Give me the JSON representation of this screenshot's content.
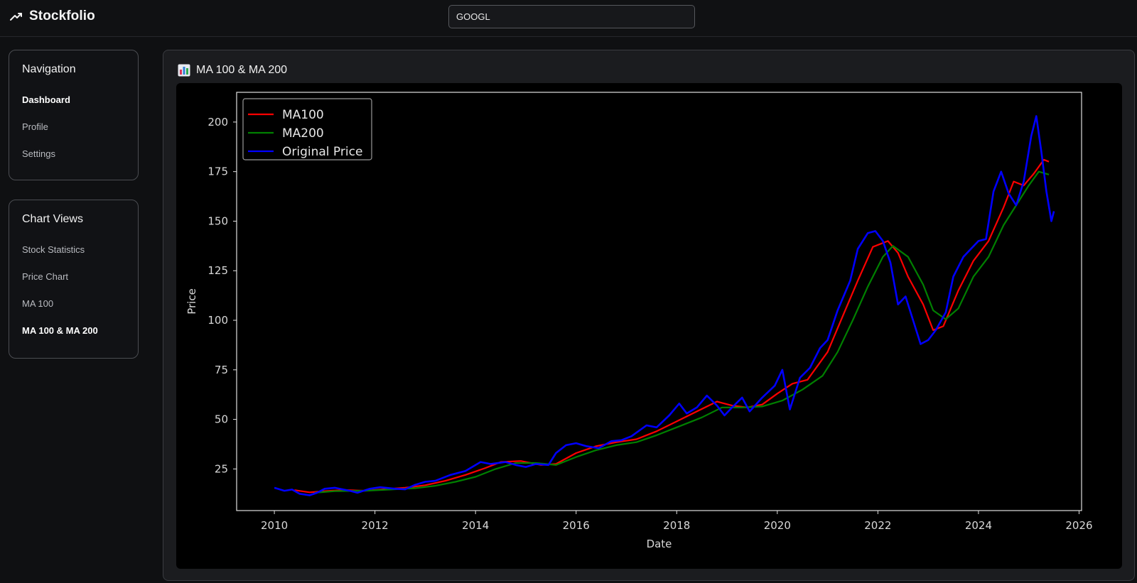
{
  "app": {
    "name": "Stockfolio",
    "logo_icon": "trending-up-icon"
  },
  "search": {
    "value": "GOOGL"
  },
  "navigation": {
    "title": "Navigation",
    "items": [
      {
        "label": "Dashboard",
        "active": true
      },
      {
        "label": "Profile",
        "active": false
      },
      {
        "label": "Settings",
        "active": false
      }
    ]
  },
  "chart_views": {
    "title": "Chart Views",
    "items": [
      {
        "label": "Stock Statistics",
        "active": false
      },
      {
        "label": "Price Chart",
        "active": false
      },
      {
        "label": "MA 100",
        "active": false
      },
      {
        "label": "MA 100 & MA 200",
        "active": true
      }
    ]
  },
  "main": {
    "title": "MA 100 & MA 200",
    "title_icon": "bar-chart-icon"
  },
  "colors": {
    "ma100": "#ff0000",
    "ma200": "#008000",
    "price": "#0000ff",
    "background": "#000000"
  },
  "chart_data": {
    "type": "line",
    "xlabel": "Date",
    "ylabel": "Price",
    "xlim": [
      2009.25,
      2026.05
    ],
    "ylim": [
      4,
      215
    ],
    "xticks": [
      2010,
      2012,
      2014,
      2016,
      2018,
      2020,
      2022,
      2024,
      2026
    ],
    "yticks": [
      25,
      50,
      75,
      100,
      125,
      150,
      175,
      200
    ],
    "legend_position": "upper-left",
    "series": [
      {
        "name": "MA100",
        "color": "#ff0000",
        "points": [
          [
            2010.4,
            14.3
          ],
          [
            2010.7,
            13.2
          ],
          [
            2011.0,
            13.8
          ],
          [
            2011.4,
            14.4
          ],
          [
            2011.8,
            14.0
          ],
          [
            2012.2,
            14.8
          ],
          [
            2012.6,
            15.5
          ],
          [
            2013.0,
            16.8
          ],
          [
            2013.4,
            19.0
          ],
          [
            2013.8,
            22.0
          ],
          [
            2014.2,
            25.5
          ],
          [
            2014.5,
            28.5
          ],
          [
            2014.9,
            29.0
          ],
          [
            2015.3,
            27.0
          ],
          [
            2015.6,
            27.5
          ],
          [
            2016.0,
            33.0
          ],
          [
            2016.4,
            36.5
          ],
          [
            2016.8,
            38.5
          ],
          [
            2017.2,
            40.0
          ],
          [
            2017.6,
            44.0
          ],
          [
            2018.0,
            49.0
          ],
          [
            2018.4,
            54.0
          ],
          [
            2018.8,
            59.0
          ],
          [
            2019.1,
            57.0
          ],
          [
            2019.4,
            56.0
          ],
          [
            2019.7,
            57.5
          ],
          [
            2020.0,
            63.0
          ],
          [
            2020.3,
            68.0
          ],
          [
            2020.6,
            70.0
          ],
          [
            2021.0,
            84.0
          ],
          [
            2021.3,
            102.0
          ],
          [
            2021.6,
            120.0
          ],
          [
            2021.9,
            137.0
          ],
          [
            2022.2,
            140.0
          ],
          [
            2022.4,
            134.0
          ],
          [
            2022.6,
            122.0
          ],
          [
            2022.9,
            108.0
          ],
          [
            2023.1,
            95.0
          ],
          [
            2023.3,
            97.0
          ],
          [
            2023.6,
            115.0
          ],
          [
            2023.9,
            130.0
          ],
          [
            2024.2,
            140.0
          ],
          [
            2024.5,
            157.0
          ],
          [
            2024.7,
            170.0
          ],
          [
            2024.9,
            168.0
          ],
          [
            2025.1,
            174.0
          ],
          [
            2025.3,
            181.0
          ],
          [
            2025.4,
            180.0
          ]
        ]
      },
      {
        "name": "MA200",
        "color": "#008000",
        "points": [
          [
            2010.8,
            13.0
          ],
          [
            2011.2,
            13.8
          ],
          [
            2011.8,
            14.0
          ],
          [
            2012.3,
            14.6
          ],
          [
            2012.8,
            15.3
          ],
          [
            2013.2,
            16.5
          ],
          [
            2013.6,
            18.5
          ],
          [
            2014.0,
            21.0
          ],
          [
            2014.4,
            25.0
          ],
          [
            2014.8,
            28.0
          ],
          [
            2015.2,
            28.0
          ],
          [
            2015.6,
            27.0
          ],
          [
            2016.0,
            31.0
          ],
          [
            2016.4,
            34.5
          ],
          [
            2016.8,
            37.0
          ],
          [
            2017.2,
            38.5
          ],
          [
            2017.6,
            42.0
          ],
          [
            2018.0,
            46.0
          ],
          [
            2018.5,
            51.0
          ],
          [
            2018.9,
            56.0
          ],
          [
            2019.3,
            56.0
          ],
          [
            2019.7,
            56.5
          ],
          [
            2020.1,
            59.5
          ],
          [
            2020.5,
            65.0
          ],
          [
            2020.9,
            72.0
          ],
          [
            2021.2,
            84.0
          ],
          [
            2021.5,
            100.0
          ],
          [
            2021.8,
            117.0
          ],
          [
            2022.1,
            132.0
          ],
          [
            2022.3,
            137.5
          ],
          [
            2022.6,
            132.0
          ],
          [
            2022.9,
            118.0
          ],
          [
            2023.1,
            105.0
          ],
          [
            2023.35,
            100.5
          ],
          [
            2023.6,
            106.0
          ],
          [
            2023.9,
            122.0
          ],
          [
            2024.2,
            132.0
          ],
          [
            2024.5,
            148.0
          ],
          [
            2024.8,
            160.0
          ],
          [
            2025.0,
            168.0
          ],
          [
            2025.2,
            175.0
          ],
          [
            2025.4,
            173.5
          ]
        ]
      },
      {
        "name": "Original Price",
        "color": "#0000ff",
        "points": [
          [
            2010.0,
            15.5
          ],
          [
            2010.2,
            14.0
          ],
          [
            2010.35,
            14.6
          ],
          [
            2010.5,
            12.5
          ],
          [
            2010.7,
            11.7
          ],
          [
            2010.85,
            13.0
          ],
          [
            2011.0,
            15.0
          ],
          [
            2011.2,
            15.5
          ],
          [
            2011.5,
            14.0
          ],
          [
            2011.65,
            13.0
          ],
          [
            2011.9,
            15.0
          ],
          [
            2012.1,
            15.8
          ],
          [
            2012.4,
            15.0
          ],
          [
            2012.6,
            14.7
          ],
          [
            2012.8,
            17.0
          ],
          [
            2013.0,
            18.5
          ],
          [
            2013.2,
            19.0
          ],
          [
            2013.5,
            22.0
          ],
          [
            2013.8,
            24.0
          ],
          [
            2014.1,
            28.5
          ],
          [
            2014.3,
            27.5
          ],
          [
            2014.6,
            28.5
          ],
          [
            2014.8,
            27.0
          ],
          [
            2015.0,
            26.0
          ],
          [
            2015.2,
            27.5
          ],
          [
            2015.45,
            27.0
          ],
          [
            2015.6,
            33.0
          ],
          [
            2015.8,
            37.0
          ],
          [
            2016.0,
            38.0
          ],
          [
            2016.2,
            36.5
          ],
          [
            2016.45,
            35.5
          ],
          [
            2016.7,
            39.0
          ],
          [
            2016.9,
            39.5
          ],
          [
            2017.1,
            41.5
          ],
          [
            2017.4,
            47.0
          ],
          [
            2017.6,
            46.0
          ],
          [
            2017.85,
            52.0
          ],
          [
            2018.05,
            58.0
          ],
          [
            2018.2,
            53.0
          ],
          [
            2018.4,
            56.0
          ],
          [
            2018.6,
            62.0
          ],
          [
            2018.8,
            57.0
          ],
          [
            2018.95,
            52.0
          ],
          [
            2019.1,
            56.0
          ],
          [
            2019.3,
            61.0
          ],
          [
            2019.45,
            54.0
          ],
          [
            2019.7,
            61.0
          ],
          [
            2019.95,
            67.0
          ],
          [
            2020.1,
            75.0
          ],
          [
            2020.25,
            55.0
          ],
          [
            2020.45,
            71.0
          ],
          [
            2020.65,
            76.0
          ],
          [
            2020.85,
            86.0
          ],
          [
            2021.0,
            90.0
          ],
          [
            2021.2,
            105.0
          ],
          [
            2021.45,
            120.0
          ],
          [
            2021.6,
            136.0
          ],
          [
            2021.8,
            144.0
          ],
          [
            2021.95,
            145.0
          ],
          [
            2022.1,
            140.0
          ],
          [
            2022.25,
            129.0
          ],
          [
            2022.4,
            108.0
          ],
          [
            2022.55,
            112.0
          ],
          [
            2022.7,
            100.0
          ],
          [
            2022.85,
            88.0
          ],
          [
            2023.0,
            90.0
          ],
          [
            2023.15,
            95.0
          ],
          [
            2023.35,
            104.0
          ],
          [
            2023.5,
            122.0
          ],
          [
            2023.7,
            132.0
          ],
          [
            2023.85,
            136.0
          ],
          [
            2024.0,
            140.0
          ],
          [
            2024.15,
            141.0
          ],
          [
            2024.3,
            165.0
          ],
          [
            2024.45,
            175.0
          ],
          [
            2024.6,
            164.0
          ],
          [
            2024.75,
            158.0
          ],
          [
            2024.9,
            170.0
          ],
          [
            2025.05,
            193.0
          ],
          [
            2025.15,
            203.0
          ],
          [
            2025.25,
            185.0
          ],
          [
            2025.35,
            165.0
          ],
          [
            2025.45,
            150.0
          ],
          [
            2025.5,
            155.0
          ]
        ]
      }
    ]
  }
}
